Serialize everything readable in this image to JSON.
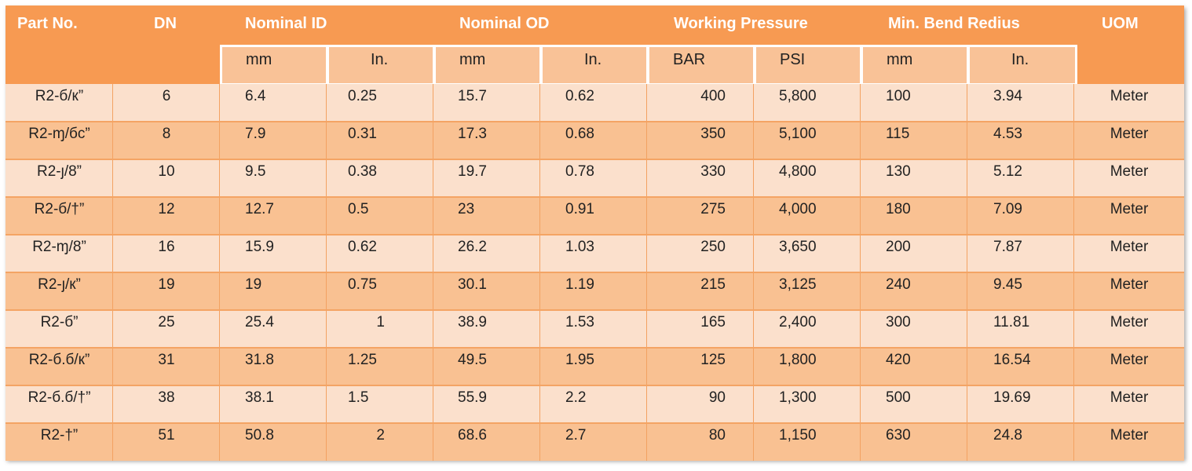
{
  "headers": {
    "part_no": "Part No.",
    "dn": "DN",
    "nominal_id": "Nominal ID",
    "nominal_od": "Nominal OD",
    "working_pressure": "Working Pressure",
    "min_bend_radius": "Min. Bend Redius",
    "uom": "UOM"
  },
  "subheaders": [
    "mm",
    "In.",
    "mm",
    "In.",
    "BAR",
    "PSI",
    "mm",
    "In."
  ],
  "rows": [
    [
      "R2-б/к”",
      "6",
      "6.4",
      "0.25",
      "15.7",
      "0.62",
      "400",
      "5,800",
      "100",
      "3.94",
      "Meter"
    ],
    [
      "R2-ɱ/бc”",
      "8",
      "7.9",
      "0.31",
      "17.3",
      "0.68",
      "350",
      "5,100",
      "115",
      "4.53",
      "Meter"
    ],
    [
      "R2-ȷ/8”",
      "10",
      "9.5",
      "0.38",
      "19.7",
      "0.78",
      "330",
      "4,800",
      "130",
      "5.12",
      "Meter"
    ],
    [
      "R2-б/†”",
      "12",
      "12.7",
      "0.5",
      "23",
      "0.91",
      "275",
      "4,000",
      "180",
      "7.09",
      "Meter"
    ],
    [
      "R2-ɱ/8”",
      "16",
      "15.9",
      "0.62",
      "26.2",
      "1.03",
      "250",
      "3,650",
      "200",
      "7.87",
      "Meter"
    ],
    [
      "R2-ȷ/к”",
      "19",
      "19",
      "0.75",
      "30.1",
      "1.19",
      "215",
      "3,125",
      "240",
      "9.45",
      "Meter"
    ],
    [
      "R2-б”",
      "25",
      "25.4",
      "1",
      "38.9",
      "1.53",
      "165",
      "2,400",
      "300",
      "11.81",
      "Meter"
    ],
    [
      "R2-б.б/к”",
      "31",
      "31.8",
      "1.25",
      "49.5",
      "1.95",
      "125",
      "1,800",
      "420",
      "16.54",
      "Meter"
    ],
    [
      "R2-б.б/†”",
      "38",
      "38.1",
      "1.5",
      "55.9",
      "2.2",
      "90",
      "1,300",
      "500",
      "19.69",
      "Meter"
    ],
    [
      "R2-†”",
      "51",
      "50.8",
      "2",
      "68.6",
      "2.7",
      "80",
      "1,150",
      "630",
      "24.8",
      "Meter"
    ]
  ],
  "colors": {
    "header_bg": "#f79a52",
    "subheader_bg": "#f9c297",
    "row_light": "#fbe0cc",
    "row_dark": "#f9c192",
    "header_text": "#ffffff"
  }
}
